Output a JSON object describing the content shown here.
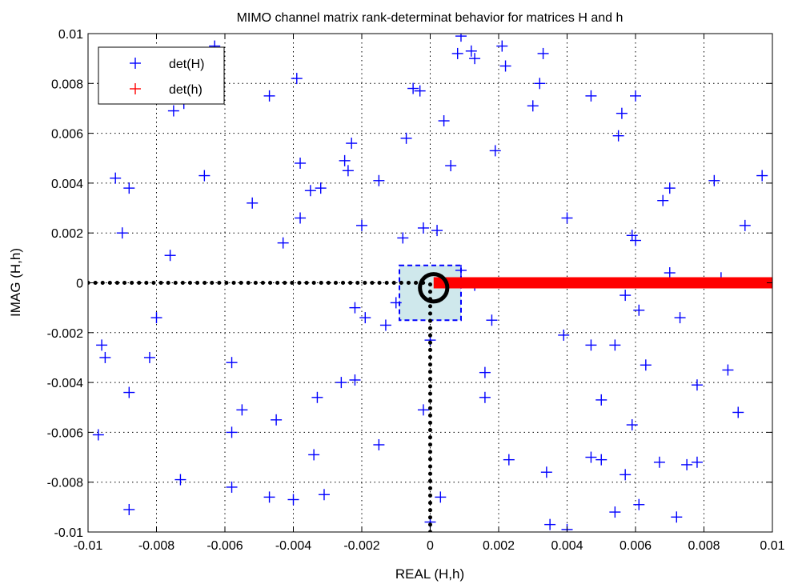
{
  "chart_data": {
    "type": "scatter",
    "title": "MIMO channel matrix rank-determinat behavior for matrices H and h",
    "xlabel": "REAL (H,h)",
    "ylabel": "IMAG (H,h)",
    "xlim": [
      -0.01,
      0.01
    ],
    "ylim": [
      -0.01,
      0.01
    ],
    "xticks": [
      -0.01,
      -0.008,
      -0.006,
      -0.004,
      -0.002,
      0,
      0.002,
      0.004,
      0.006,
      0.008,
      0.01
    ],
    "yticks": [
      -0.01,
      -0.008,
      -0.006,
      -0.004,
      -0.002,
      0,
      0.002,
      0.004,
      0.006,
      0.008,
      0.01
    ],
    "xtick_labels": [
      "-0.01",
      "-0.008",
      "-0.006",
      "-0.004",
      "-0.002",
      "0",
      "0.002",
      "0.004",
      "0.006",
      "0.008",
      "0.01"
    ],
    "ytick_labels": [
      "-0.01",
      "-0.008",
      "-0.006",
      "-0.004",
      "-0.002",
      "0",
      "0.002",
      "0.004",
      "0.006",
      "0.008",
      "0.01"
    ],
    "grid": true,
    "legend_position": "top-left",
    "series": [
      {
        "name": "det(H)",
        "color": "#0000ff",
        "marker": "plus",
        "points": [
          [
            -0.0063,
            0.0095
          ],
          [
            -0.0092,
            0.0042
          ],
          [
            -0.0088,
            0.0038
          ],
          [
            -0.009,
            0.002
          ],
          [
            -0.0075,
            0.0069
          ],
          [
            -0.0072,
            0.0072
          ],
          [
            -0.0076,
            0.0011
          ],
          [
            -0.0066,
            0.0043
          ],
          [
            -0.0047,
            0.0075
          ],
          [
            -0.0039,
            0.0082
          ],
          [
            -0.0038,
            0.0048
          ],
          [
            -0.0035,
            0.0037
          ],
          [
            -0.0032,
            0.0038
          ],
          [
            -0.0038,
            0.0026
          ],
          [
            -0.0052,
            0.0032
          ],
          [
            -0.0043,
            0.0016
          ],
          [
            -0.0025,
            0.0049
          ],
          [
            -0.0023,
            0.0056
          ],
          [
            -0.0024,
            0.0045
          ],
          [
            -0.0015,
            0.0041
          ],
          [
            -0.002,
            0.0023
          ],
          [
            -0.0008,
            0.0018
          ],
          [
            -0.0007,
            0.0058
          ],
          [
            -0.0005,
            0.0078
          ],
          [
            -0.0003,
            0.0077
          ],
          [
            -0.0002,
            0.0022
          ],
          [
            0.0002,
            0.0021
          ],
          [
            0.0006,
            0.0047
          ],
          [
            0.0004,
            0.0065
          ],
          [
            0.0008,
            0.0092
          ],
          [
            0.0009,
            0.0099
          ],
          [
            0.0012,
            0.0093
          ],
          [
            0.0013,
            0.009
          ],
          [
            0.0021,
            0.0095
          ],
          [
            0.0022,
            0.0087
          ],
          [
            0.0019,
            0.0053
          ],
          [
            0.003,
            0.0071
          ],
          [
            0.0032,
            0.008
          ],
          [
            0.0033,
            0.0092
          ],
          [
            0.004,
            0.0026
          ],
          [
            0.0047,
            0.0075
          ],
          [
            0.0055,
            0.0059
          ],
          [
            0.0056,
            0.0068
          ],
          [
            0.0059,
            0.0019
          ],
          [
            0.006,
            0.0017
          ],
          [
            0.006,
            0.0075
          ],
          [
            0.0068,
            0.0033
          ],
          [
            0.007,
            0.0038
          ],
          [
            0.0083,
            0.0041
          ],
          [
            0.0092,
            0.0023
          ],
          [
            0.0097,
            0.0043
          ],
          [
            0.007,
            0.0004
          ],
          [
            0.0085,
            0.0002
          ],
          [
            0.0098,
            0.0
          ],
          [
            -0.0096,
            -0.0025
          ],
          [
            -0.0095,
            -0.003
          ],
          [
            -0.0088,
            -0.0044
          ],
          [
            -0.0082,
            -0.003
          ],
          [
            -0.008,
            -0.0014
          ],
          [
            -0.0097,
            -0.0061
          ],
          [
            -0.0088,
            -0.0091
          ],
          [
            -0.0073,
            -0.0079
          ],
          [
            -0.0058,
            -0.0032
          ],
          [
            -0.0055,
            -0.0051
          ],
          [
            -0.0058,
            -0.006
          ],
          [
            -0.0058,
            -0.0082
          ],
          [
            -0.0047,
            -0.0086
          ],
          [
            -0.004,
            -0.0087
          ],
          [
            -0.0045,
            -0.0055
          ],
          [
            -0.0033,
            -0.0046
          ],
          [
            -0.0034,
            -0.0069
          ],
          [
            -0.0031,
            -0.0085
          ],
          [
            -0.0026,
            -0.004
          ],
          [
            -0.0022,
            -0.0039
          ],
          [
            -0.0022,
            -0.001
          ],
          [
            -0.0019,
            -0.0014
          ],
          [
            -0.0013,
            -0.0017
          ],
          [
            -0.0015,
            -0.0065
          ],
          [
            -0.001,
            -0.0008
          ],
          [
            -0.0002,
            -0.0051
          ],
          [
            0.0,
            -0.0023
          ],
          [
            0.0,
            -0.0096
          ],
          [
            0.0003,
            -0.0086
          ],
          [
            0.0009,
            0.0005
          ],
          [
            0.0016,
            -0.0036
          ],
          [
            0.0016,
            -0.0046
          ],
          [
            0.0018,
            -0.0015
          ],
          [
            0.0023,
            -0.0071
          ],
          [
            0.0034,
            -0.0076
          ],
          [
            0.0035,
            -0.0097
          ],
          [
            0.0039,
            -0.0021
          ],
          [
            0.004,
            -0.0099
          ],
          [
            0.0047,
            -0.0025
          ],
          [
            0.0047,
            -0.007
          ],
          [
            0.005,
            -0.0071
          ],
          [
            0.005,
            -0.0047
          ],
          [
            0.0054,
            -0.0025
          ],
          [
            0.0054,
            -0.0092
          ],
          [
            0.0057,
            -0.0005
          ],
          [
            0.0057,
            -0.0077
          ],
          [
            0.0059,
            -0.0057
          ],
          [
            0.0061,
            -0.0011
          ],
          [
            0.0061,
            -0.0089
          ],
          [
            0.0063,
            -0.0033
          ],
          [
            0.0067,
            -0.0072
          ],
          [
            0.0072,
            -0.0094
          ],
          [
            0.0073,
            -0.0014
          ],
          [
            0.0075,
            -0.0073
          ],
          [
            0.0078,
            -0.0041
          ],
          [
            0.0078,
            -0.0072
          ],
          [
            0.0087,
            -0.0035
          ],
          [
            0.009,
            -0.0052
          ],
          [
            0.0013,
            -0.0001
          ]
        ]
      },
      {
        "name": "det(h)",
        "color": "#ff0000",
        "marker": "plus",
        "x_range": [
          0.0001,
          0.0101
        ],
        "y": 0.0
      }
    ],
    "annotations": [
      {
        "type": "dotted-line",
        "color": "#000000",
        "from": [
          -0.01,
          0.0
        ],
        "to": [
          0.0,
          0.0
        ]
      },
      {
        "type": "dotted-line",
        "color": "#000000",
        "from": [
          0.0,
          -0.01
        ],
        "to": [
          0.0,
          0.0
        ]
      },
      {
        "type": "dashed-box",
        "color": "#0000ff",
        "fill": "#cfe8ec",
        "x": [
          -0.0009,
          0.0009
        ],
        "y": [
          -0.0015,
          0.0007
        ]
      },
      {
        "type": "circle",
        "color": "#000000",
        "center": [
          0.0001,
          -0.0002
        ],
        "radius": 0.0004
      }
    ]
  }
}
